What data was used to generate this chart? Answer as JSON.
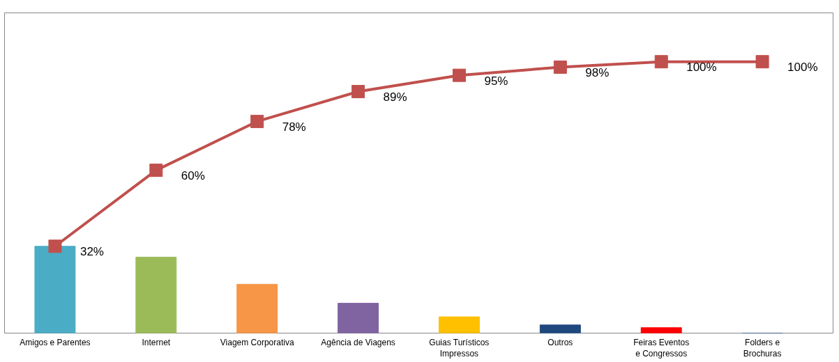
{
  "chart_data": {
    "type": "bar",
    "categories": [
      "Amigos e Parentes",
      "Internet",
      "Viagem Corporativa",
      "Agência de Viagens",
      "Guias Turísticos Impressos",
      "Outros",
      "Feiras Eventos e Congressos",
      "Folders e Brochuras"
    ],
    "ylim": [
      0,
      118
    ],
    "series": [
      {
        "colors": [
          "#4bacc6",
          "#9bbb59",
          "#f79646",
          "#8064a2",
          "#ffc000",
          "#1f497d",
          "#ff0000",
          "#1f497d"
        ],
        "values": [
          32,
          28,
          18,
          11,
          6,
          3,
          2,
          0
        ]
      },
      {
        "type": "line",
        "color": "#c0504d",
        "values": [
          32,
          60,
          78,
          89,
          95,
          98,
          100,
          100
        ],
        "value_labels": [
          "32%",
          "60%",
          "78%",
          "89%",
          "95%",
          "98%",
          "100%",
          "100%"
        ]
      }
    ],
    "marker": "square",
    "line_style": "solid",
    "grid": false
  }
}
